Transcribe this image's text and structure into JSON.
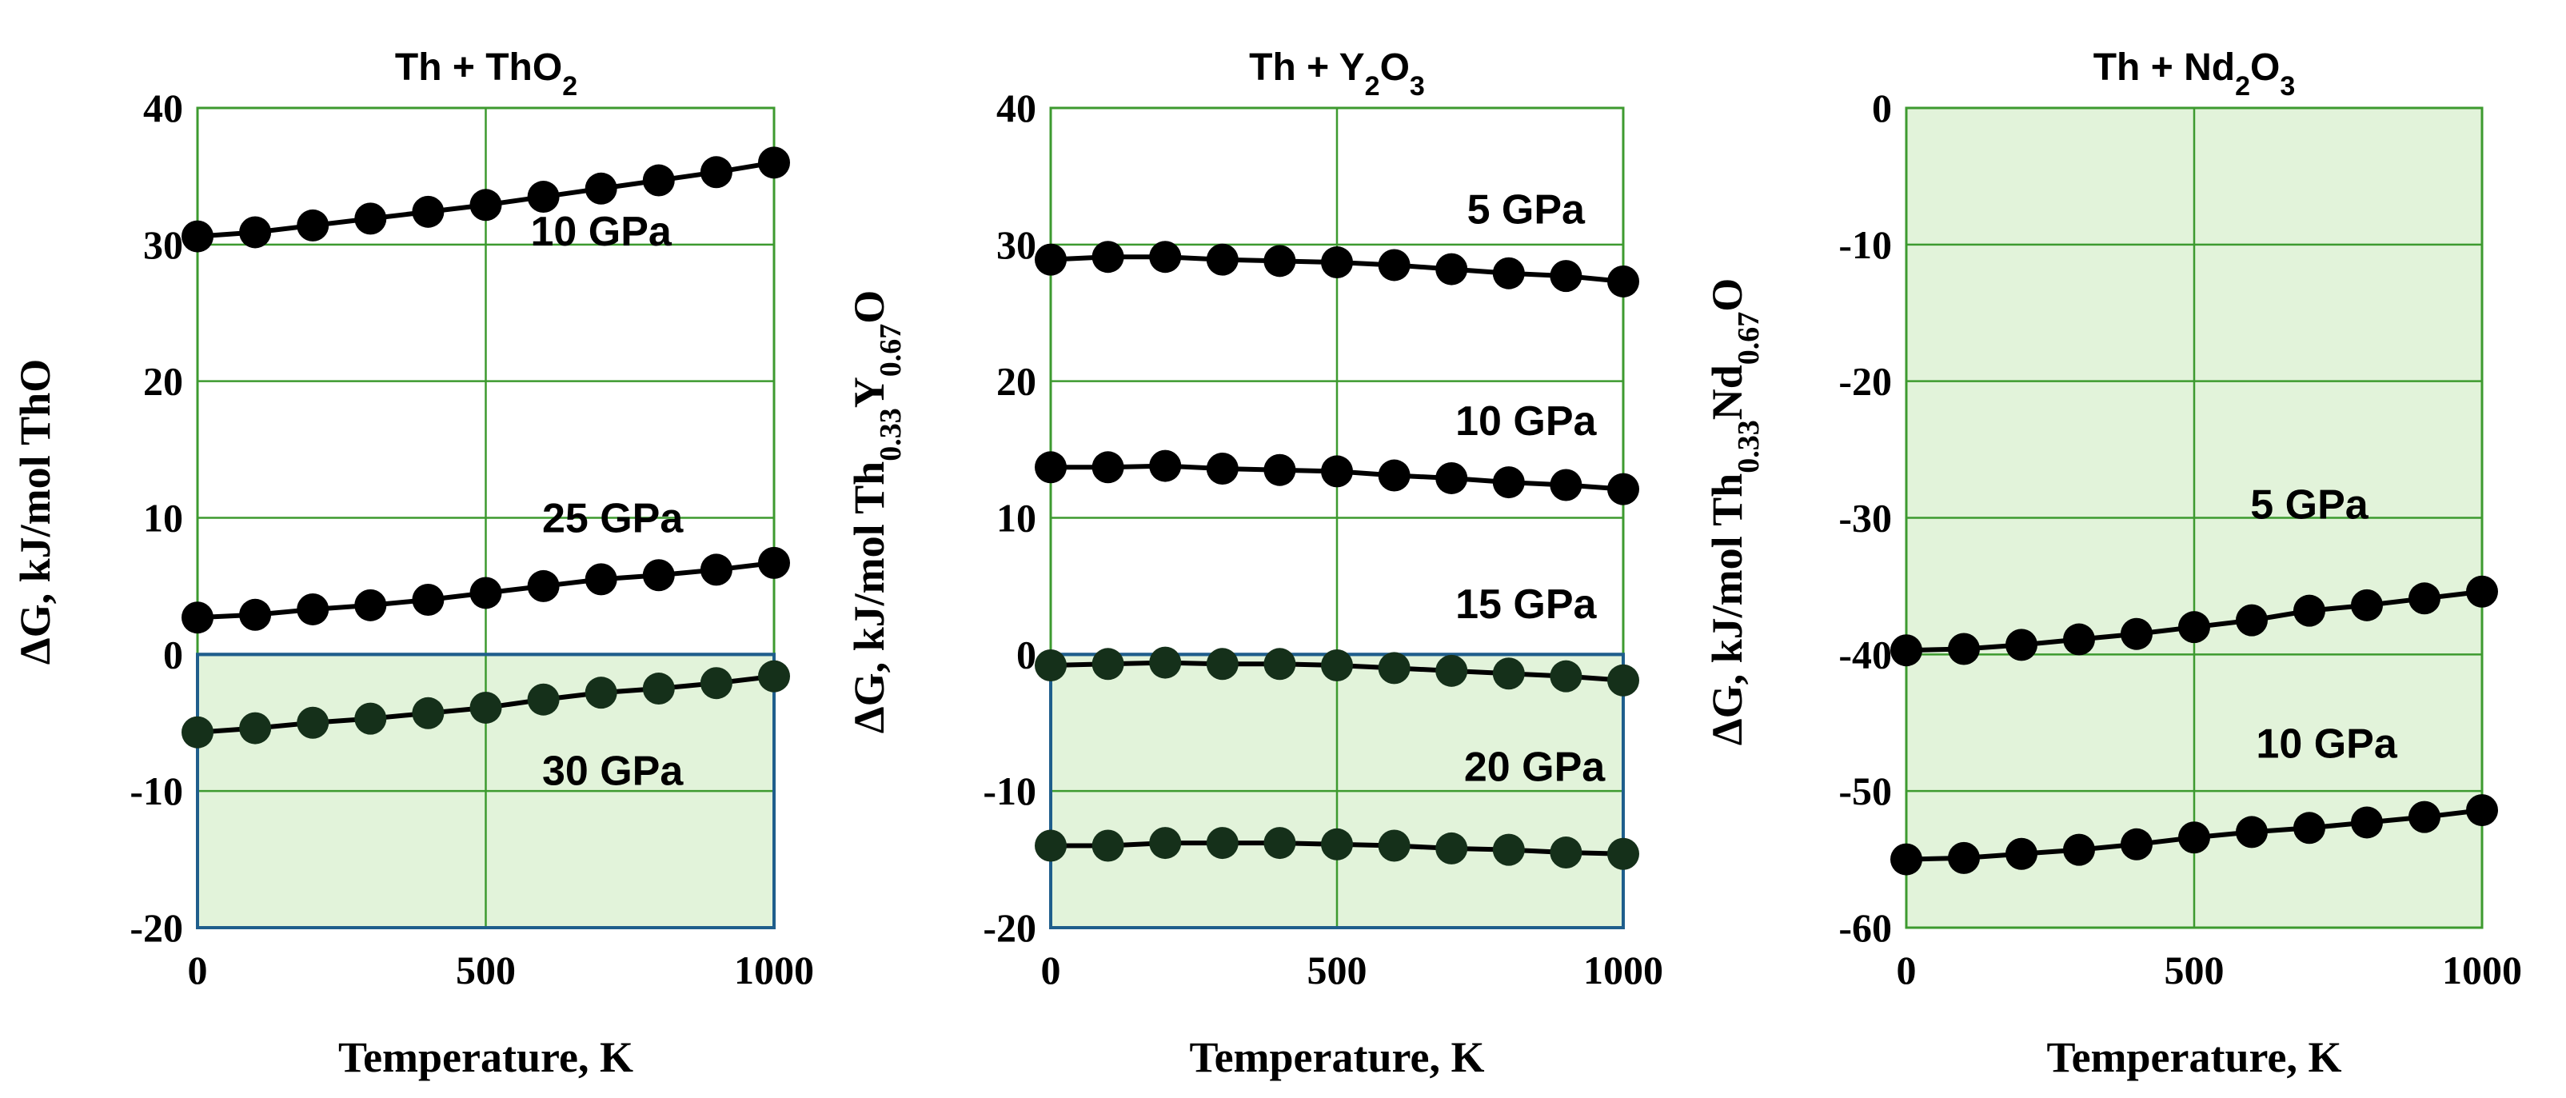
{
  "colors": {
    "grid": "#3d9a2f",
    "shade_fill": "#e2f3da",
    "shade_border": "#1f5e8c",
    "marker": "#000000",
    "marker_shaded": "#15301a",
    "line": "#000000"
  },
  "xlabel": "Temperature, K",
  "chart_data": [
    {
      "type": "line",
      "title": "Th + ThO₂",
      "xlabel": "Temperature, K",
      "ylabel": "ΔG, kJ/mol ThO",
      "xlim": [
        0,
        1000
      ],
      "ylim": [
        -20,
        40
      ],
      "xticks": [
        0,
        500,
        1000
      ],
      "yticks": [
        -20,
        -10,
        0,
        10,
        20,
        30,
        40
      ],
      "x": [
        0,
        100,
        200,
        300,
        400,
        500,
        600,
        700,
        800,
        900,
        1000
      ],
      "shaded_region": {
        "ymin": -20,
        "ymax": 0,
        "full": false
      },
      "series": [
        {
          "name": "10 GPa",
          "values": [
            30.6,
            30.9,
            31.4,
            31.9,
            32.4,
            32.9,
            33.5,
            34.1,
            34.7,
            35.3,
            36.0
          ],
          "label_at": [
            700,
            31
          ]
        },
        {
          "name": "25 GPa",
          "values": [
            2.7,
            2.9,
            3.3,
            3.6,
            4.0,
            4.5,
            5.0,
            5.5,
            5.8,
            6.2,
            6.7
          ],
          "label_at": [
            720,
            10
          ]
        },
        {
          "name": "30 GPa",
          "values": [
            -5.7,
            -5.4,
            -5.0,
            -4.7,
            -4.3,
            -3.9,
            -3.3,
            -2.8,
            -2.5,
            -2.1,
            -1.6
          ],
          "label_at": [
            720,
            -8.5
          ]
        }
      ]
    },
    {
      "type": "line",
      "title": "Th + Y₂O₃",
      "xlabel": "Temperature, K",
      "ylabel": "ΔG, kJ/mol Th₀.₃₃Y₀.₆₇O",
      "ylabel_parts": {
        "pre": "ΔG, kJ/mol Th",
        "sub1": "0.33",
        "mid": "Y",
        "sub2": "0.67",
        "post": "O"
      },
      "xlim": [
        0,
        1000
      ],
      "ylim": [
        -20,
        40
      ],
      "xticks": [
        0,
        500,
        1000
      ],
      "yticks": [
        -20,
        -10,
        0,
        10,
        20,
        30,
        40
      ],
      "x": [
        0,
        100,
        200,
        300,
        400,
        500,
        600,
        700,
        800,
        900,
        1000
      ],
      "shaded_region": {
        "ymin": -20,
        "ymax": 0,
        "full": false
      },
      "series": [
        {
          "name": "5 GPa",
          "values": [
            28.9,
            29.1,
            29.1,
            28.9,
            28.8,
            28.7,
            28.5,
            28.2,
            27.9,
            27.7,
            27.3
          ],
          "label_at": [
            830,
            32.6
          ]
        },
        {
          "name": "10 GPa",
          "values": [
            13.7,
            13.7,
            13.8,
            13.6,
            13.5,
            13.4,
            13.1,
            12.9,
            12.6,
            12.4,
            12.1
          ],
          "label_at": [
            830,
            17.1
          ]
        },
        {
          "name": "15 GPa",
          "values": [
            -0.8,
            -0.7,
            -0.6,
            -0.7,
            -0.7,
            -0.8,
            -1.0,
            -1.2,
            -1.4,
            -1.6,
            -1.9
          ],
          "label_at": [
            830,
            3.7
          ]
        },
        {
          "name": "20 GPa",
          "values": [
            -14.0,
            -14.0,
            -13.8,
            -13.8,
            -13.8,
            -13.9,
            -14.0,
            -14.2,
            -14.3,
            -14.5,
            -14.6
          ],
          "label_at": [
            845,
            -8.2
          ]
        }
      ]
    },
    {
      "type": "line",
      "title": "Th + Nd₂O₃",
      "xlabel": "Temperature, K",
      "ylabel": "ΔG, kJ/mol Th₀.₃₃Nd₀.₆₇O",
      "ylabel_parts": {
        "pre": "ΔG, kJ/mol Th",
        "sub1": "0.33",
        "mid": "Nd",
        "sub2": "0.67",
        "post": "O"
      },
      "xlim": [
        0,
        1000
      ],
      "ylim": [
        -60,
        0
      ],
      "xticks": [
        0,
        500,
        1000
      ],
      "yticks": [
        -60,
        -50,
        -40,
        -30,
        -20,
        -10,
        0
      ],
      "x": [
        0,
        100,
        200,
        300,
        400,
        500,
        600,
        700,
        800,
        900,
        1000
      ],
      "shaded_region": {
        "ymin": -60,
        "ymax": 0,
        "full": true
      },
      "series": [
        {
          "name": "5 GPa",
          "values": [
            -39.7,
            -39.6,
            -39.3,
            -38.9,
            -38.5,
            -38.0,
            -37.5,
            -36.8,
            -36.4,
            -35.9,
            -35.4
          ],
          "label_at": [
            700,
            -29
          ]
        },
        {
          "name": "10 GPa",
          "values": [
            -55.0,
            -54.9,
            -54.6,
            -54.3,
            -53.9,
            -53.4,
            -53.0,
            -52.7,
            -52.3,
            -51.9,
            -51.4
          ],
          "label_at": [
            730,
            -46.5
          ]
        }
      ]
    }
  ]
}
